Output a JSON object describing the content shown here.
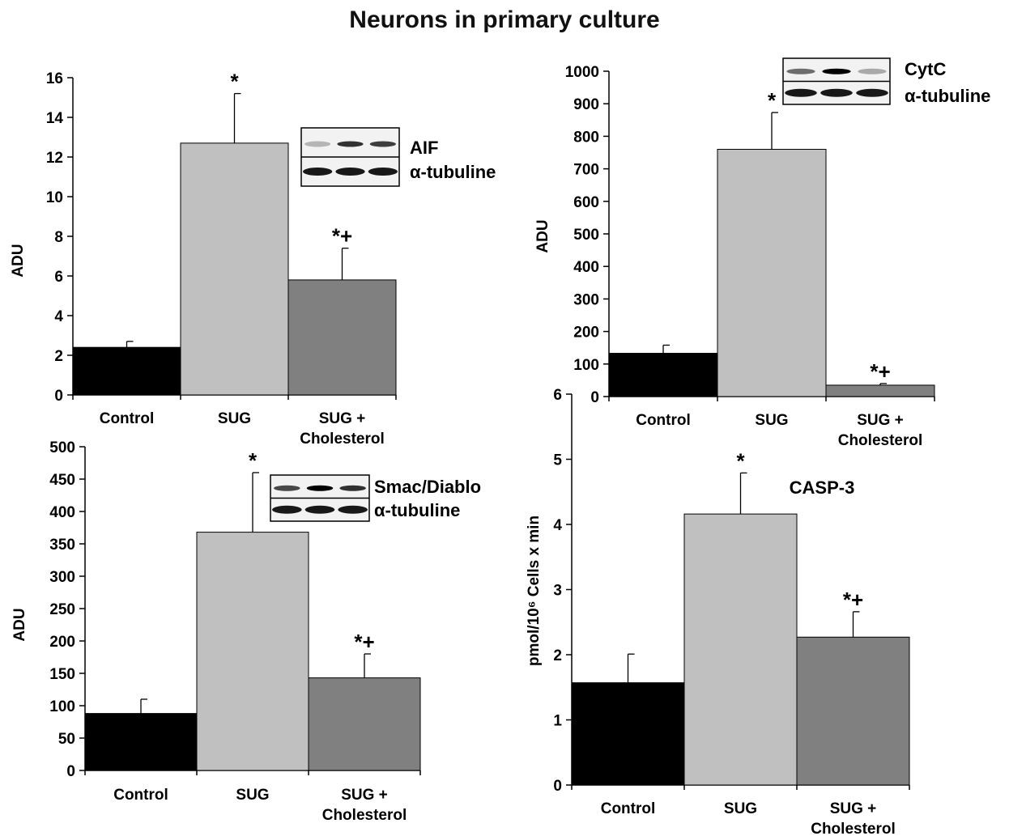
{
  "figure": {
    "title": "Neurons in primary culture"
  },
  "colors": {
    "Control": "#000000",
    "SUG": "#c0c0c0",
    "SUG + Cholesterol": "#808080"
  },
  "chart_data": [
    {
      "id": "aif",
      "type": "bar",
      "ylabel": "ADU",
      "ylim": [
        0,
        16
      ],
      "yticks": [
        0,
        2,
        4,
        6,
        8,
        10,
        12,
        14,
        16
      ],
      "categories": [
        "Control",
        "SUG",
        "SUG + Cholesterol"
      ],
      "category_lines": [
        [
          "Control"
        ],
        [
          "SUG"
        ],
        [
          "SUG +",
          "Cholesterol"
        ]
      ],
      "values": [
        2.4,
        12.7,
        5.8
      ],
      "errors": [
        0.3,
        2.5,
        1.6
      ],
      "annotations": [
        "",
        "*",
        "*+"
      ],
      "blot_labels": [
        "AIF",
        "α-tubuline"
      ]
    },
    {
      "id": "cytc",
      "type": "bar",
      "ylabel": "ADU",
      "ylim": [
        0,
        1000
      ],
      "yticks": [
        0,
        100,
        200,
        300,
        400,
        500,
        600,
        700,
        800,
        900,
        1000
      ],
      "categories": [
        "Control",
        "SUG",
        "SUG + Cholesterol"
      ],
      "category_lines": [
        [
          "Control"
        ],
        [
          "SUG"
        ],
        [
          "SUG +",
          "Cholesterol"
        ]
      ],
      "values": [
        133,
        760,
        35
      ],
      "errors": [
        25,
        113,
        5
      ],
      "annotations": [
        "",
        "*",
        "*+"
      ],
      "blot_labels": [
        "CytC",
        "α-tubuline"
      ]
    },
    {
      "id": "smac",
      "type": "bar",
      "ylabel": "ADU",
      "ylim": [
        0,
        500
      ],
      "yticks": [
        0,
        50,
        100,
        150,
        200,
        250,
        300,
        350,
        400,
        450,
        500
      ],
      "categories": [
        "Control",
        "SUG",
        "SUG + Cholesterol"
      ],
      "category_lines": [
        [
          "Control"
        ],
        [
          "SUG"
        ],
        [
          "SUG +",
          "Cholesterol"
        ]
      ],
      "values": [
        88,
        368,
        143
      ],
      "errors": [
        22,
        92,
        37
      ],
      "annotations": [
        "",
        "*",
        "*+"
      ],
      "blot_labels": [
        "Smac/Diablo",
        "α-tubuline"
      ]
    },
    {
      "id": "casp3",
      "type": "bar",
      "ylabel": "pmol/10⁶ Cells x min",
      "ylim": [
        0,
        6
      ],
      "yticks": [
        0,
        1,
        2,
        3,
        4,
        5,
        6
      ],
      "categories": [
        "Control",
        "SUG",
        "SUG + Cholesterol"
      ],
      "category_lines": [
        [
          "Control"
        ],
        [
          "SUG"
        ],
        [
          "SUG +",
          "Cholesterol"
        ]
      ],
      "values": [
        1.57,
        4.16,
        2.27
      ],
      "errors": [
        0.44,
        0.63,
        0.39
      ],
      "annotations": [
        "",
        "*",
        "*+"
      ],
      "label": "CASP-3"
    }
  ]
}
